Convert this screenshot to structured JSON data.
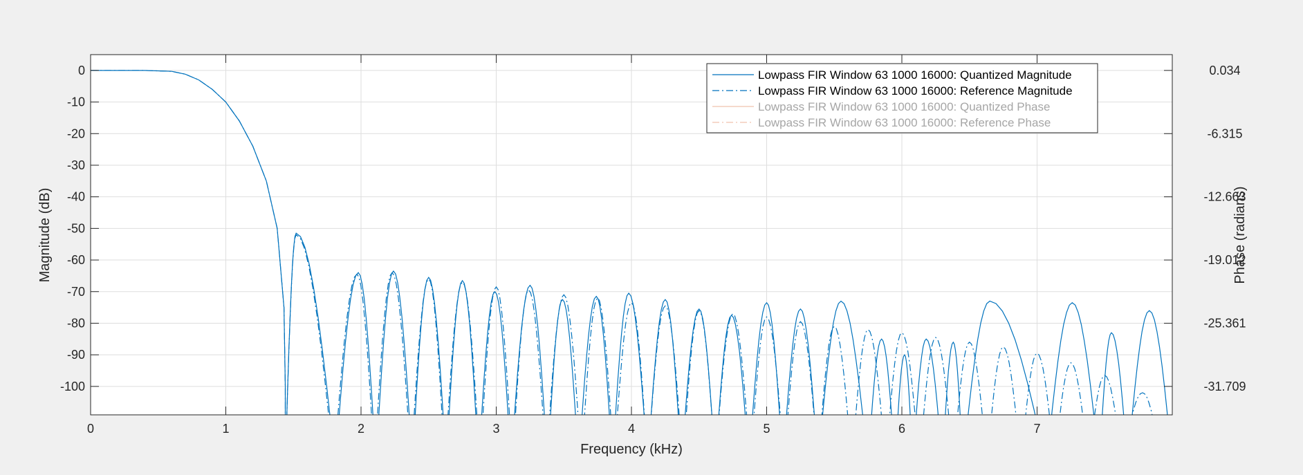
{
  "chart_data": {
    "type": "line",
    "xlabel": "Frequency (kHz)",
    "ylabel": "Magnitude (dB)",
    "ylabel_right": "Phase (radians)",
    "xlim": [
      0,
      8
    ],
    "ylim": [
      -109,
      5
    ],
    "ylim_right_tick_labels": [
      "0.034",
      "-6.315",
      "-12.663",
      "-19.012",
      "-25.361",
      "-31.709"
    ],
    "x_ticks": [
      0,
      1,
      2,
      3,
      4,
      5,
      6,
      7
    ],
    "y_ticks": [
      0,
      -10,
      -20,
      -30,
      -40,
      -50,
      -60,
      -70,
      -80,
      -90,
      -100
    ],
    "x_tick_labels": [
      "0",
      "1",
      "2",
      "3",
      "4",
      "5",
      "6",
      "7"
    ],
    "y_tick_labels": [
      "0",
      "-10",
      "-20",
      "-30",
      "-40",
      "-50",
      "-60",
      "-70",
      "-80",
      "-90",
      "-100"
    ],
    "grid": true,
    "legend_position": "top-right",
    "colors": {
      "magnitude": "#0072BD",
      "phase": "#D95319",
      "disabled_text": "#a6a6a6"
    },
    "series": [
      {
        "name": "Lowpass FIR Window 63 1000 16000: Quantized Magnitude",
        "style": "solid",
        "visible": true,
        "x": [
          0,
          0.2,
          0.4,
          0.6,
          0.7,
          0.8,
          0.9,
          1.0,
          1.1,
          1.2,
          1.3,
          1.38,
          1.43,
          1.44
        ],
        "y": [
          0,
          0,
          0,
          -0.3,
          -1.2,
          -3,
          -6,
          -10,
          -16,
          -24,
          -35,
          -50,
          -75,
          -100
        ],
        "lobes": [
          [
            1.44,
            1.52,
            1.81,
            -51.5
          ],
          [
            1.81,
            1.98,
            2.11,
            -64
          ],
          [
            2.11,
            2.24,
            2.38,
            -63.5
          ],
          [
            2.38,
            2.5,
            2.63,
            -65.5
          ],
          [
            2.63,
            2.75,
            2.87,
            -66.5
          ],
          [
            2.87,
            2.99,
            3.11,
            -70
          ],
          [
            3.11,
            3.25,
            3.38,
            -68
          ],
          [
            3.38,
            3.49,
            3.61,
            -72.5
          ],
          [
            3.61,
            3.74,
            3.86,
            -71.5
          ],
          [
            3.86,
            3.98,
            4.12,
            -70.5
          ],
          [
            4.12,
            4.25,
            4.37,
            -72.5
          ],
          [
            4.37,
            4.5,
            4.62,
            -75.5
          ],
          [
            4.62,
            4.74,
            4.87,
            -77.5
          ],
          [
            4.87,
            5.0,
            5.12,
            -73.5
          ],
          [
            5.12,
            5.25,
            5.38,
            -75.5
          ],
          [
            5.38,
            5.55,
            5.75,
            -73
          ],
          [
            5.75,
            5.85,
            5.95,
            -85
          ],
          [
            5.95,
            6.02,
            6.08,
            -90
          ],
          [
            6.08,
            6.18,
            6.3,
            -85
          ],
          [
            6.3,
            6.38,
            6.45,
            -86
          ],
          [
            6.45,
            6.65,
            7.07,
            -73
          ],
          [
            7.07,
            7.26,
            7.46,
            -73.5
          ],
          [
            7.46,
            7.55,
            7.67,
            -83
          ],
          [
            7.67,
            7.83,
            8.0,
            -76
          ]
        ]
      },
      {
        "name": "Lowpass FIR Window 63 1000 16000: Reference Magnitude",
        "style": "dashdot",
        "visible": true,
        "x": [
          0,
          0.2,
          0.4,
          0.6,
          0.7,
          0.8,
          0.9,
          1.0,
          1.1,
          1.2,
          1.3,
          1.38,
          1.43,
          1.44
        ],
        "y": [
          0,
          0,
          0,
          -0.3,
          -1.2,
          -3,
          -6,
          -10,
          -16,
          -24,
          -35,
          -50,
          -75,
          -100
        ],
        "lobes": [
          [
            1.44,
            1.52,
            1.8,
            -52
          ],
          [
            1.8,
            1.97,
            2.1,
            -64.5
          ],
          [
            2.1,
            2.23,
            2.37,
            -64
          ],
          [
            2.37,
            2.5,
            2.62,
            -66
          ],
          [
            2.62,
            2.75,
            2.88,
            -67
          ],
          [
            2.88,
            3.0,
            3.12,
            -68.5
          ],
          [
            3.12,
            3.24,
            3.37,
            -69.5
          ],
          [
            3.37,
            3.5,
            3.63,
            -71
          ],
          [
            3.63,
            3.75,
            3.87,
            -72
          ],
          [
            3.87,
            4.0,
            4.12,
            -73.5
          ],
          [
            4.12,
            4.25,
            4.38,
            -74.5
          ],
          [
            4.38,
            4.5,
            4.62,
            -76
          ],
          [
            4.62,
            4.75,
            4.88,
            -77
          ],
          [
            4.88,
            5.0,
            5.13,
            -78
          ],
          [
            5.13,
            5.25,
            5.38,
            -79.5
          ],
          [
            5.38,
            5.5,
            5.63,
            -81
          ],
          [
            5.63,
            5.75,
            5.88,
            -82
          ],
          [
            5.88,
            6.0,
            6.13,
            -83
          ],
          [
            6.13,
            6.25,
            6.38,
            -84.5
          ],
          [
            6.38,
            6.5,
            6.63,
            -86
          ],
          [
            6.63,
            6.75,
            6.88,
            -87.5
          ],
          [
            6.88,
            7.0,
            7.13,
            -89.5
          ],
          [
            7.13,
            7.25,
            7.38,
            -92.5
          ],
          [
            7.38,
            7.5,
            7.63,
            -96.5
          ],
          [
            7.63,
            7.78,
            7.92,
            -102
          ]
        ]
      },
      {
        "name": "Lowpass FIR Window 63 1000 16000: Quantized Phase",
        "style": "solid",
        "visible": false
      },
      {
        "name": "Lowpass FIR Window 63 1000 16000: Reference Phase",
        "style": "dashdot",
        "visible": false
      }
    ]
  }
}
